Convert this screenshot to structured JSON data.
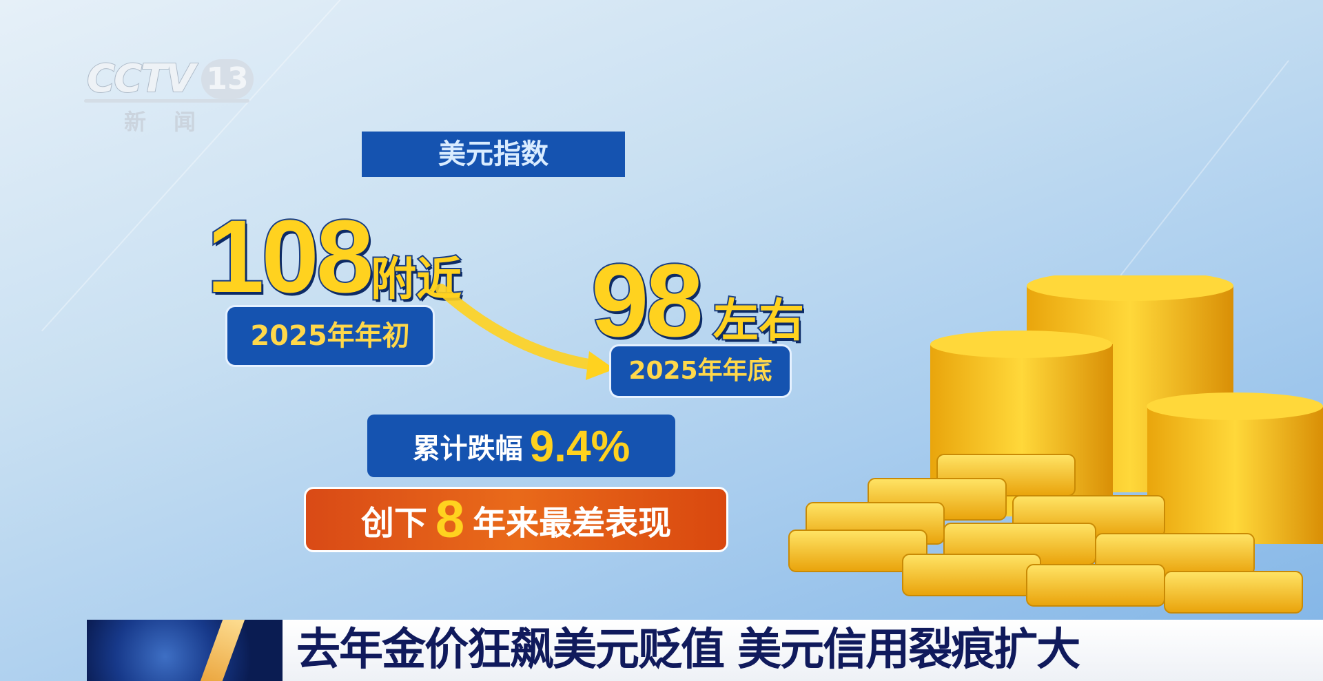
{
  "logo": {
    "brand": "CCTV",
    "channel": "13",
    "subtitle": "新闻"
  },
  "title": "美元指数",
  "start": {
    "value": "108",
    "qualifier": "附近",
    "label": "2025年年初"
  },
  "end": {
    "value": "98",
    "qualifier": "左右",
    "label": "2025年年底"
  },
  "decline": {
    "label": "累计跌幅",
    "value": "9.4%"
  },
  "record": {
    "prefix": "创下",
    "years": "8",
    "suffix": "年来最差表现"
  },
  "headline": "去年金价狂飙美元贬值 美元信用裂痕扩大",
  "colors": {
    "blue": "#1553b0",
    "gold": "#ffd21f",
    "orange": "#e0561a",
    "headline": "#101a5c"
  }
}
